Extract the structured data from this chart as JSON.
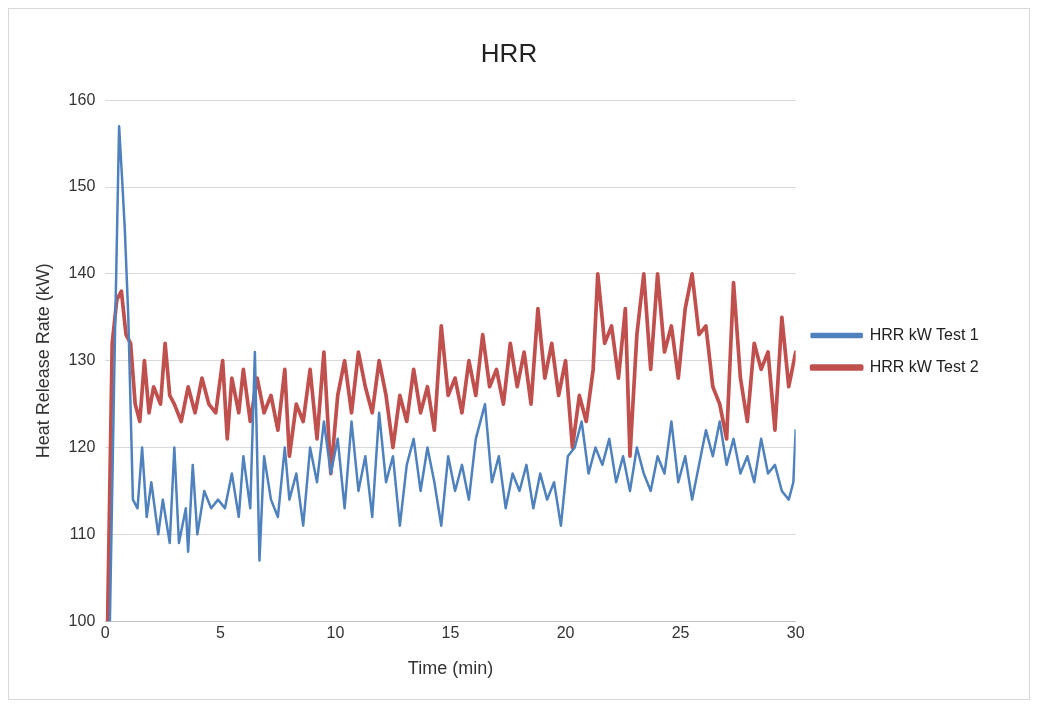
{
  "chart_data": {
    "type": "line",
    "title": "HRR",
    "xlabel": "Time (min)",
    "ylabel": "Heat Release Rate (kW)",
    "xlim": [
      0,
      30
    ],
    "xticks": [
      0,
      5,
      10,
      15,
      20,
      25,
      30
    ],
    "ylim": [
      100,
      160
    ],
    "yticks": [
      100,
      110,
      120,
      130,
      140,
      150,
      160
    ],
    "grid": "y",
    "legend": "right",
    "marker": "none",
    "line_style": "solid",
    "series": [
      {
        "name": "HRR kW Test 1",
        "color": "#4f81bd",
        "x": [
          0.2,
          0.4,
          0.6,
          0.75,
          0.85,
          1.0,
          1.2,
          1.4,
          1.6,
          1.8,
          2.0,
          2.3,
          2.5,
          2.8,
          3.0,
          3.2,
          3.5,
          3.6,
          3.8,
          4.0,
          4.3,
          4.6,
          4.9,
          5.2,
          5.5,
          5.8,
          6.0,
          6.3,
          6.5,
          6.7,
          6.9,
          7.2,
          7.5,
          7.8,
          8.0,
          8.3,
          8.6,
          8.9,
          9.2,
          9.5,
          9.8,
          10.1,
          10.4,
          10.7,
          11.0,
          11.3,
          11.6,
          11.9,
          12.2,
          12.5,
          12.8,
          13.1,
          13.4,
          13.7,
          14.0,
          14.3,
          14.6,
          14.9,
          15.2,
          15.5,
          15.8,
          16.1,
          16.5,
          16.8,
          17.1,
          17.4,
          17.7,
          18.0,
          18.3,
          18.6,
          18.9,
          19.2,
          19.5,
          19.8,
          20.1,
          20.4,
          20.7,
          21.0,
          21.3,
          21.6,
          21.9,
          22.2,
          22.5,
          22.8,
          23.1,
          23.4,
          23.7,
          24.0,
          24.3,
          24.6,
          24.9,
          25.2,
          25.5,
          25.8,
          26.1,
          26.4,
          26.7,
          27.0,
          27.3,
          27.6,
          27.9,
          28.2,
          28.5,
          28.8,
          29.1,
          29.4,
          29.7,
          29.9,
          30.0
        ],
        "values": [
          100,
          130,
          157,
          150,
          145,
          135,
          114,
          113,
          120,
          112,
          116,
          110,
          114,
          109,
          120,
          109,
          113,
          108,
          118,
          110,
          115,
          113,
          114,
          113,
          117,
          112,
          119,
          113,
          131,
          107,
          119,
          114,
          112,
          120,
          114,
          117,
          111,
          120,
          116,
          123,
          117,
          121,
          113,
          123,
          115,
          119,
          112,
          124,
          116,
          119,
          111,
          118,
          121,
          115,
          120,
          116,
          111,
          119,
          115,
          118,
          114,
          121,
          125,
          116,
          119,
          113,
          117,
          115,
          118,
          113,
          117,
          114,
          116,
          111,
          119,
          120,
          123,
          117,
          120,
          118,
          121,
          116,
          119,
          115,
          120,
          117,
          115,
          119,
          117,
          123,
          116,
          119,
          114,
          118,
          122,
          119,
          123,
          118,
          121,
          117,
          119,
          116,
          121,
          117,
          118,
          115,
          114,
          116,
          122
        ]
      },
      {
        "name": "HRR kW Test 2",
        "color": "#c0504d",
        "x": [
          0.1,
          0.3,
          0.5,
          0.7,
          0.9,
          1.1,
          1.3,
          1.5,
          1.7,
          1.9,
          2.1,
          2.4,
          2.6,
          2.8,
          3.0,
          3.3,
          3.6,
          3.9,
          4.2,
          4.5,
          4.8,
          5.1,
          5.3,
          5.5,
          5.8,
          6.0,
          6.3,
          6.6,
          6.9,
          7.2,
          7.5,
          7.8,
          8.0,
          8.3,
          8.6,
          8.9,
          9.2,
          9.5,
          9.8,
          10.1,
          10.4,
          10.7,
          11.0,
          11.3,
          11.6,
          11.9,
          12.2,
          12.5,
          12.8,
          13.1,
          13.4,
          13.7,
          14.0,
          14.3,
          14.6,
          14.9,
          15.2,
          15.5,
          15.8,
          16.1,
          16.4,
          16.7,
          17.0,
          17.3,
          17.6,
          17.9,
          18.2,
          18.5,
          18.8,
          19.1,
          19.4,
          19.7,
          20.0,
          20.3,
          20.6,
          20.9,
          21.2,
          21.4,
          21.7,
          22.0,
          22.3,
          22.6,
          22.8,
          23.1,
          23.4,
          23.7,
          24.0,
          24.3,
          24.6,
          24.9,
          25.2,
          25.5,
          25.8,
          26.1,
          26.4,
          26.7,
          27.0,
          27.3,
          27.6,
          27.9,
          28.2,
          28.5,
          28.8,
          29.1,
          29.4,
          29.7,
          30.0
        ],
        "values": [
          100,
          132,
          137,
          138,
          133,
          132,
          125,
          123,
          130,
          124,
          127,
          125,
          132,
          126,
          125,
          123,
          127,
          124,
          128,
          125,
          124,
          130,
          121,
          128,
          124,
          129,
          123,
          128,
          124,
          126,
          122,
          129,
          119,
          125,
          123,
          129,
          121,
          131,
          117,
          126,
          130,
          124,
          131,
          127,
          124,
          130,
          126,
          120,
          126,
          123,
          129,
          124,
          127,
          122,
          134,
          126,
          128,
          124,
          130,
          126,
          133,
          127,
          129,
          125,
          132,
          127,
          131,
          125,
          136,
          128,
          132,
          126,
          130,
          120,
          126,
          123,
          129,
          140,
          132,
          134,
          128,
          136,
          119,
          133,
          140,
          129,
          140,
          131,
          134,
          128,
          136,
          140,
          133,
          134,
          127,
          125,
          121,
          139,
          128,
          123,
          132,
          129,
          131,
          122,
          135,
          127,
          131
        ]
      }
    ]
  }
}
